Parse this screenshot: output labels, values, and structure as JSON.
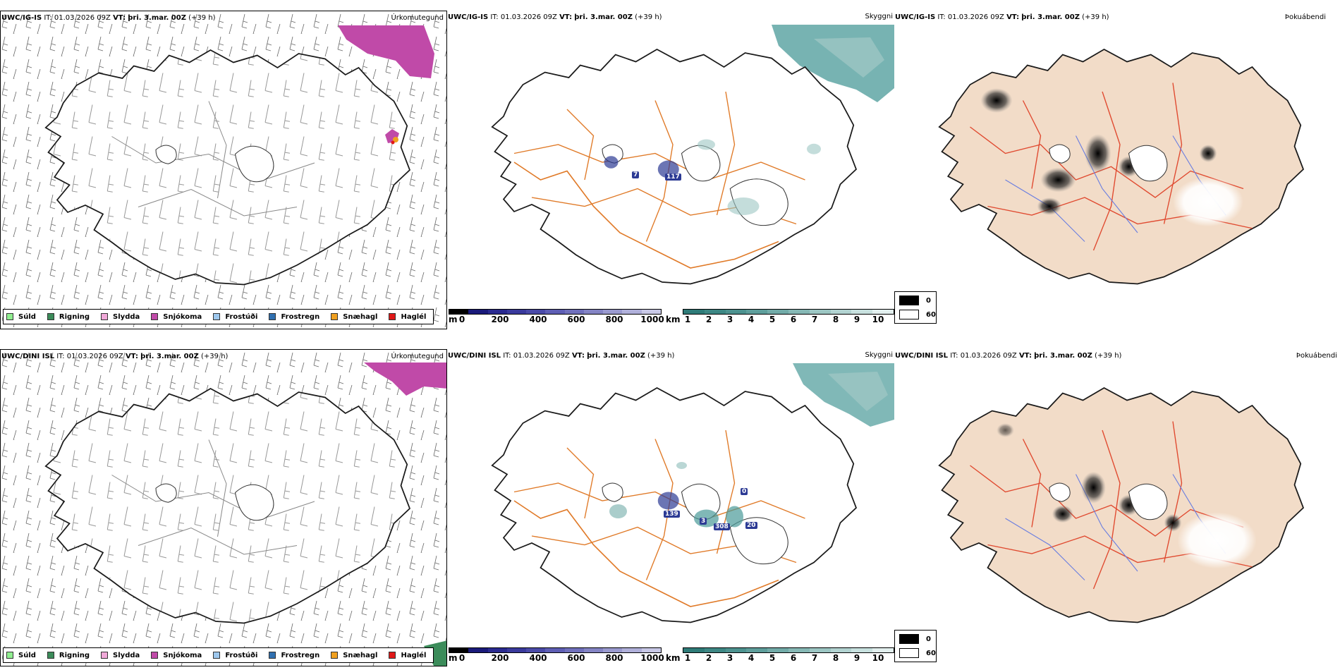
{
  "rows": [
    {
      "model": "UWC/IG-IS",
      "it_label": "IT:",
      "it_value": "01.03.2026 09Z",
      "vt_label": "VT:",
      "vt_value": "þri. 3.mar. 00Z",
      "lead": "(+39 h)"
    },
    {
      "model": "UWC/DINI ISL",
      "it_label": "IT:",
      "it_value": "01.03.2026 09Z",
      "vt_label": "VT:",
      "vt_value": "þri. 3.mar. 00Z",
      "lead": "(+39 h)"
    }
  ],
  "panel_titles": {
    "precip": "Úrkomutegund",
    "cloud": "Skyggni",
    "fog": "Þokuábendi"
  },
  "precip_legend": [
    {
      "label": "Súld",
      "color": "#90ee90"
    },
    {
      "label": "Rigning",
      "color": "#3c8c5a"
    },
    {
      "label": "Slydda",
      "color": "#f0a8d8"
    },
    {
      "label": "Snjókoma",
      "color": "#c04aa8"
    },
    {
      "label": "Frostúði",
      "color": "#9ec8ee"
    },
    {
      "label": "Frostregn",
      "color": "#3070b0"
    },
    {
      "label": "Snæhagl",
      "color": "#f0a020"
    },
    {
      "label": "Haglél",
      "color": "#e01818"
    }
  ],
  "ceiling_bar": {
    "unit": "m",
    "ticks": [
      "0",
      "200",
      "400",
      "600",
      "800",
      "1000"
    ],
    "colors": [
      "#000000",
      "#1a1a7a",
      "#2a2a90",
      "#3a3a9c",
      "#4a4aa8",
      "#5e5eb4",
      "#7070bc",
      "#8484c4",
      "#9a9acf",
      "#b0b0da",
      "#c8c8e6"
    ]
  },
  "visibility_bar": {
    "unit": "km",
    "ticks": [
      "1",
      "2",
      "3",
      "4",
      "5",
      "6",
      "7",
      "8",
      "9",
      "10"
    ],
    "colors": [
      "#2e7b78",
      "#3d8784",
      "#4c928f",
      "#5e9e9b",
      "#72aba8",
      "#86b8b5",
      "#9cc6c3",
      "#b2d3d1",
      "#c8e1df",
      "#e2efee"
    ]
  },
  "fog_legend": [
    {
      "label": "0",
      "color": "#000000"
    },
    {
      "label": "60",
      "color": "#ffffff"
    }
  ],
  "cloud_values": {
    "top": [
      "7",
      "117"
    ],
    "bottom": [
      "139",
      "3",
      "308",
      "20",
      "0"
    ]
  },
  "colors": {
    "coast": "#1a1a1a",
    "roads": "#e07a28",
    "fog_land": "#f2dcc8",
    "fog_roads": "#e04a30",
    "rivers": "#6a7ee0",
    "snow": "#c04aa8",
    "cloud_teal": "#4a9a98",
    "ceiling_blue": "#2c3a94"
  }
}
